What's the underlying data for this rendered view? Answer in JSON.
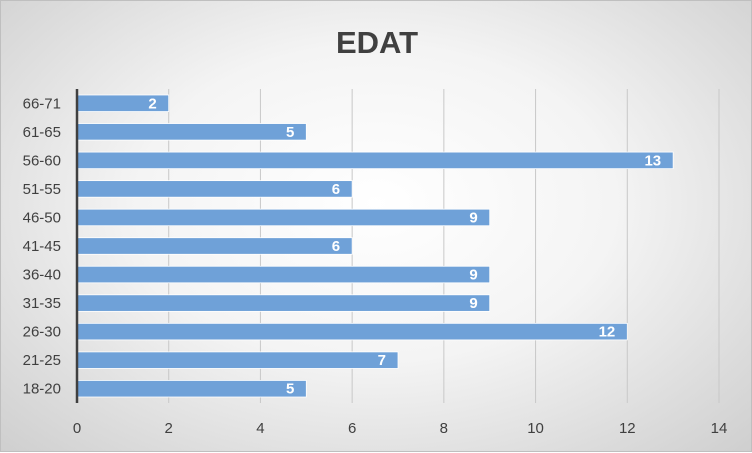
{
  "chart_data": {
    "type": "bar",
    "orientation": "horizontal",
    "title": "EDAT",
    "categories": [
      "18-20",
      "21-25",
      "26-30",
      "31-35",
      "36-40",
      "41-45",
      "46-50",
      "51-55",
      "56-60",
      "61-65",
      "66-71"
    ],
    "values": [
      5,
      7,
      12,
      9,
      9,
      6,
      9,
      6,
      13,
      5,
      2
    ],
    "xlim": [
      0,
      14
    ],
    "xticks": [
      0,
      2,
      4,
      6,
      8,
      10,
      12,
      14
    ],
    "grid": true,
    "data_labels": true,
    "legend": "none",
    "colors": {
      "bar": "#6fa1d8",
      "text": "#404040",
      "grid": "#c8c8c8",
      "data_label": "#ffffff"
    }
  }
}
